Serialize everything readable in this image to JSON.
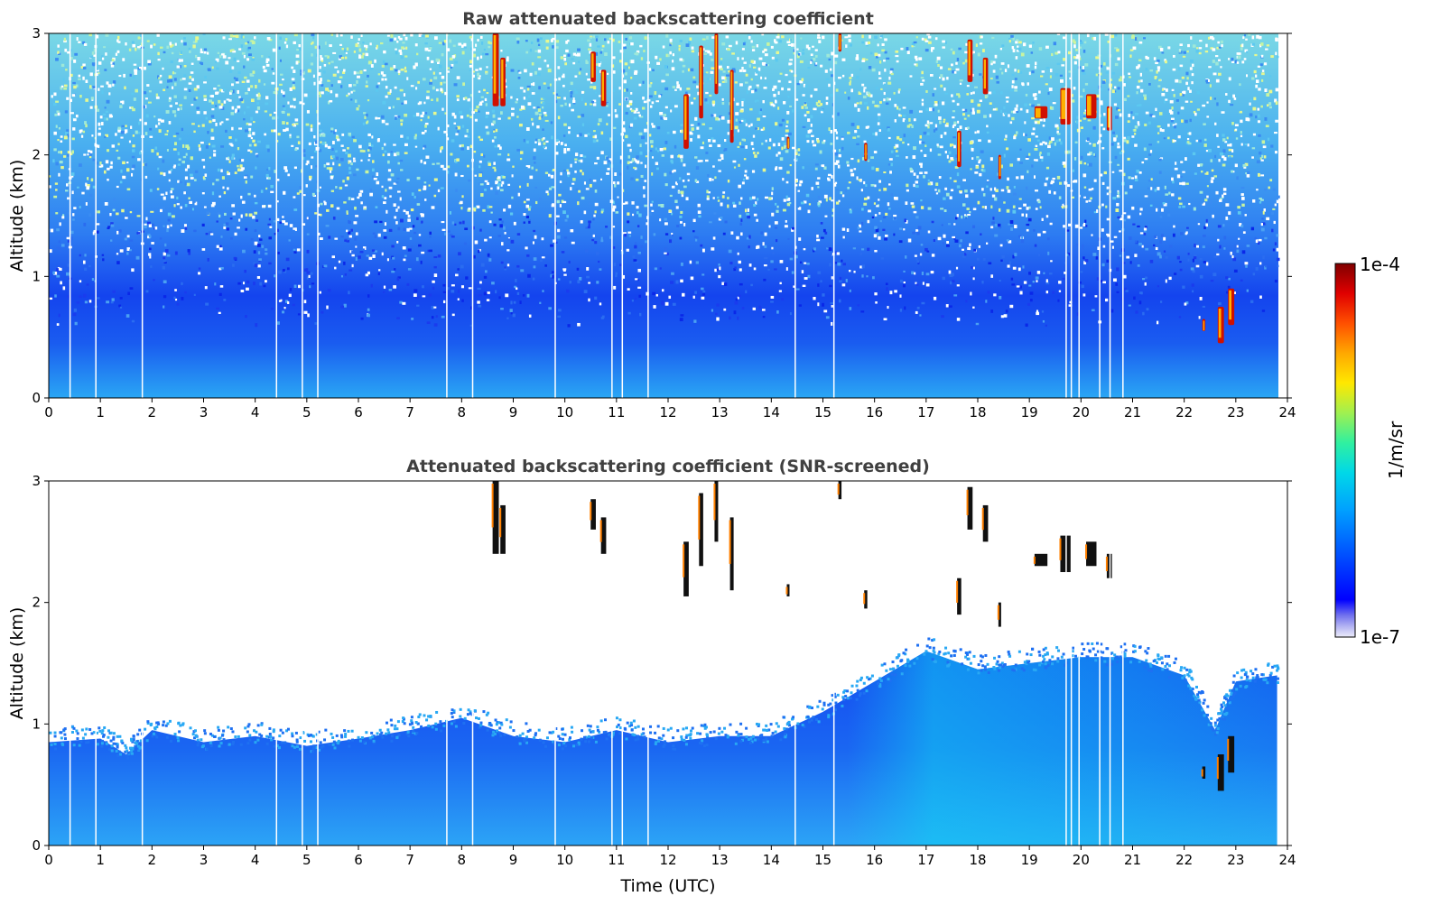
{
  "chart_data": [
    {
      "type": "heatmap",
      "title": "Raw attenuated backscattering coefficient",
      "xlabel": "",
      "ylabel": "Altitude (km)",
      "xlim": [
        0,
        24
      ],
      "ylim": [
        0,
        3
      ],
      "x_ticks": [
        "0",
        "1",
        "2",
        "3",
        "4",
        "5",
        "6",
        "7",
        "8",
        "9",
        "10",
        "11",
        "12",
        "13",
        "14",
        "15",
        "16",
        "17",
        "18",
        "19",
        "20",
        "21",
        "22",
        "23",
        "24"
      ],
      "y_ticks": [
        "0",
        "1",
        "2",
        "3"
      ],
      "grid": false,
      "features": [
        {
          "t": [
            0,
            24
          ],
          "alt": [
            0,
            0.8
          ],
          "level": "low (~5e-7)"
        },
        {
          "t": [
            0,
            24
          ],
          "alt": [
            0.8,
            3
          ],
          "level": "noisy (1e-7 to 1e-5)"
        },
        {
          "t": [
            8.5,
            8.8
          ],
          "alt": [
            2.4,
            3
          ],
          "level": "high (~1e-4)"
        },
        {
          "t": [
            10.5,
            10.8
          ],
          "alt": [
            2.4,
            2.9
          ],
          "level": "high (~1e-4)"
        },
        {
          "t": [
            12.2,
            13.4
          ],
          "alt": [
            2.0,
            3
          ],
          "level": "high (~1e-4)"
        },
        {
          "t": [
            17.5,
            18.4
          ],
          "alt": [
            1.8,
            3
          ],
          "level": "high (~1e-4)"
        },
        {
          "t": [
            19.0,
            20.8
          ],
          "alt": [
            2.1,
            2.6
          ],
          "level": "high (~1e-4)"
        },
        {
          "t": [
            22.3,
            22.9
          ],
          "alt": [
            0.45,
            0.9
          ],
          "level": "high (~1e-4)"
        }
      ]
    },
    {
      "type": "heatmap",
      "title": "Attenuated backscattering coefficient (SNR-screened)",
      "xlabel": "Time (UTC)",
      "ylabel": "Altitude (km)",
      "xlim": [
        0,
        24
      ],
      "ylim": [
        0,
        3
      ],
      "x_ticks": [
        "0",
        "1",
        "2",
        "3",
        "4",
        "5",
        "6",
        "7",
        "8",
        "9",
        "10",
        "11",
        "12",
        "13",
        "14",
        "15",
        "16",
        "17",
        "18",
        "19",
        "20",
        "21",
        "22",
        "23",
        "24"
      ],
      "y_ticks": [
        "0",
        "1",
        "2",
        "3"
      ],
      "grid": false,
      "boundary_layer_top_km": [
        [
          0,
          0.85
        ],
        [
          1,
          0.88
        ],
        [
          1.5,
          0.75
        ],
        [
          2,
          0.95
        ],
        [
          3,
          0.85
        ],
        [
          4,
          0.9
        ],
        [
          5,
          0.82
        ],
        [
          6,
          0.88
        ],
        [
          7,
          0.95
        ],
        [
          8,
          1.05
        ],
        [
          9,
          0.9
        ],
        [
          10,
          0.85
        ],
        [
          11,
          0.95
        ],
        [
          12,
          0.85
        ],
        [
          13,
          0.9
        ],
        [
          14,
          0.9
        ],
        [
          15,
          1.1
        ],
        [
          16,
          1.35
        ],
        [
          17,
          1.6
        ],
        [
          18,
          1.45
        ],
        [
          19,
          1.5
        ],
        [
          20,
          1.55
        ],
        [
          21,
          1.55
        ],
        [
          22,
          1.4
        ],
        [
          22.6,
          0.95
        ],
        [
          23,
          1.35
        ],
        [
          23.8,
          1.4
        ]
      ]
    }
  ],
  "colorbar": {
    "label": "1/m/sr",
    "max_label": "1e-4",
    "min_label": "1e-7",
    "colors": [
      "#e6e6f7",
      "#bcbcf0",
      "#8c8cf0",
      "#5a5aee",
      "#0000ff",
      "#0022ff",
      "#0050ff",
      "#0080ff",
      "#00a8ff",
      "#00c8f0",
      "#00e0d0",
      "#20f0a0",
      "#80f060",
      "#d0f020",
      "#ffe000",
      "#ffb000",
      "#ff7000",
      "#ff3000",
      "#e00000",
      "#a00000",
      "#800000"
    ]
  }
}
